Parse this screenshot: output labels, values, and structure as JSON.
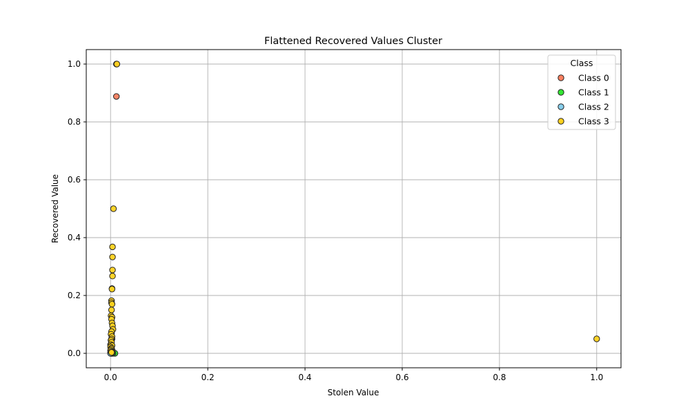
{
  "chart_data": {
    "type": "scatter",
    "title": "Flattened Recovered Values Cluster",
    "xlabel": "Stolen Value",
    "ylabel": "Recovered Value",
    "xlim": [
      -0.05,
      1.05
    ],
    "ylim": [
      -0.05,
      1.05
    ],
    "x_ticks": [
      0.0,
      0.2,
      0.4,
      0.6,
      0.8,
      1.0
    ],
    "y_ticks": [
      0.0,
      0.2,
      0.4,
      0.6,
      0.8,
      1.0
    ],
    "x_tick_labels": [
      "0.0",
      "0.2",
      "0.4",
      "0.6",
      "0.8",
      "1.0"
    ],
    "y_tick_labels": [
      "0.0",
      "0.2",
      "0.4",
      "0.6",
      "0.8",
      "1.0"
    ],
    "grid": true,
    "legend_title": "Class",
    "legend_position": "top-right",
    "series": [
      {
        "name": "Class 0",
        "color": "#fa8060",
        "points": [
          [
            0.012,
            0.888
          ],
          [
            0.012,
            1.0
          ],
          [
            0.001,
            0.003
          ],
          [
            0.002,
            0.012
          ],
          [
            0.001,
            0.025
          ],
          [
            0.003,
            0.05
          ],
          [
            0.002,
            0.0
          ],
          [
            0.004,
            0.008
          ]
        ]
      },
      {
        "name": "Class 1",
        "color": "#32e632",
        "points": [
          [
            0.009,
            0.0
          ],
          [
            0.005,
            0.0
          ],
          [
            0.001,
            0.0
          ],
          [
            0.0,
            0.002
          ],
          [
            0.002,
            0.004
          ],
          [
            0.003,
            0.001
          ]
        ]
      },
      {
        "name": "Class 2",
        "color": "#87ceeb",
        "points": [
          [
            0.0,
            0.0
          ],
          [
            0.001,
            0.006
          ],
          [
            0.002,
            0.018
          ],
          [
            0.0,
            0.03
          ],
          [
            0.001,
            0.045
          ],
          [
            0.002,
            0.07
          ]
        ]
      },
      {
        "name": "Class 3",
        "color": "#ffd21e",
        "points": [
          [
            0.013,
            1.0
          ],
          [
            0.006,
            0.5
          ],
          [
            0.004,
            0.368
          ],
          [
            0.004,
            0.333
          ],
          [
            0.004,
            0.288
          ],
          [
            0.004,
            0.267
          ],
          [
            0.003,
            0.224
          ],
          [
            0.003,
            0.222
          ],
          [
            0.002,
            0.182
          ],
          [
            0.002,
            0.175
          ],
          [
            0.003,
            0.17
          ],
          [
            0.002,
            0.15
          ],
          [
            0.001,
            0.13
          ],
          [
            0.003,
            0.125
          ],
          [
            0.002,
            0.118
          ],
          [
            0.003,
            0.105
          ],
          [
            0.004,
            0.095
          ],
          [
            0.005,
            0.083
          ],
          [
            0.002,
            0.075
          ],
          [
            0.001,
            0.066
          ],
          [
            0.003,
            0.058
          ],
          [
            0.002,
            0.05
          ],
          [
            0.001,
            0.045
          ],
          [
            0.002,
            0.038
          ],
          [
            0.001,
            0.03
          ],
          [
            0.003,
            0.027
          ],
          [
            0.0,
            0.022
          ],
          [
            0.002,
            0.018
          ],
          [
            0.001,
            0.014
          ],
          [
            0.0,
            0.01
          ],
          [
            0.001,
            0.006
          ],
          [
            0.002,
            0.003
          ],
          [
            1.0,
            0.05
          ]
        ]
      }
    ]
  }
}
